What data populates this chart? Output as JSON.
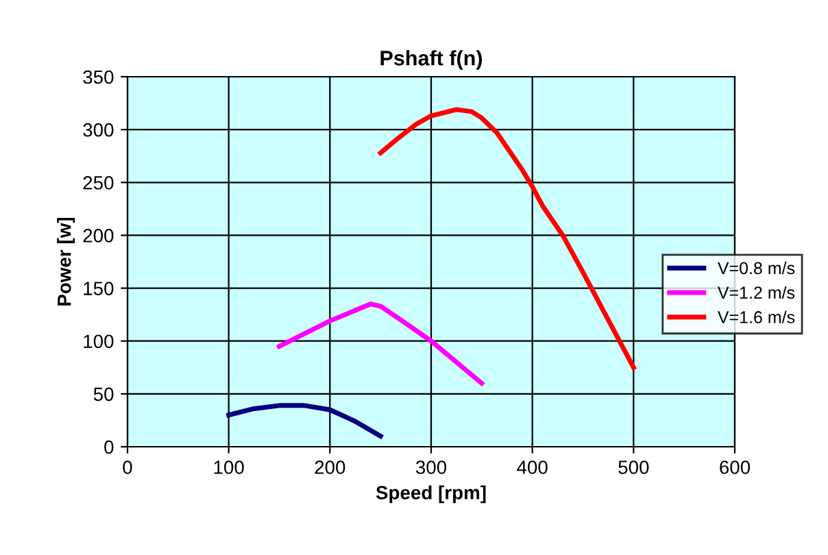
{
  "chart_data": {
    "type": "line",
    "title": "Pshaft f(n)",
    "xlabel": "Speed [rpm]",
    "ylabel": "Power [w]",
    "xlim": [
      0,
      600
    ],
    "xticks": [
      0,
      100,
      200,
      300,
      400,
      500,
      600
    ],
    "ylim": [
      0,
      350
    ],
    "yticks": [
      0,
      50,
      100,
      150,
      200,
      250,
      300,
      350
    ],
    "grid": true,
    "legend": "right",
    "marker": "none",
    "line_style": "solid",
    "series": [
      {
        "name": "V=0.8 m/s",
        "color": "#000080",
        "x": [
          100,
          125,
          150,
          175,
          200,
          225,
          250
        ],
        "values": [
          30,
          36,
          39,
          39,
          35,
          24,
          10
        ]
      },
      {
        "name": "V=1.2 m/s",
        "color": "#ff00ff",
        "x": [
          150,
          175,
          200,
          225,
          240,
          250,
          270,
          300,
          350
        ],
        "values": [
          95,
          107,
          119,
          129,
          135,
          133,
          120,
          100,
          60
        ]
      },
      {
        "name": "V=1.6 m/s",
        "color": "#ff0000",
        "x": [
          250,
          265,
          285,
          300,
          325,
          340,
          350,
          365,
          390,
          400,
          410,
          430,
          450,
          475,
          500
        ],
        "values": [
          278,
          290,
          305,
          313,
          319,
          317,
          311,
          297,
          262,
          246,
          228,
          200,
          165,
          120,
          75
        ]
      }
    ]
  }
}
